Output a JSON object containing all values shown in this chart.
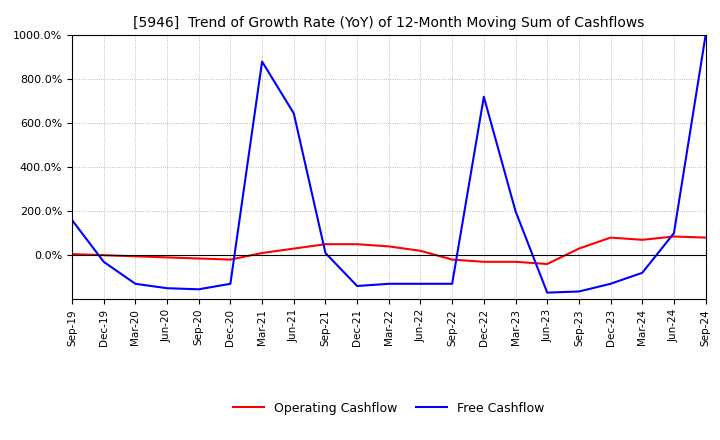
{
  "title": "[5946]  Trend of Growth Rate (YoY) of 12-Month Moving Sum of Cashflows",
  "background_color": "#ffffff",
  "grid_color": "#aaaaaa",
  "operating_color": "#ff0000",
  "free_color": "#0000ff",
  "ylim": [
    -200,
    1000
  ],
  "yticks": [
    0,
    200,
    400,
    600,
    800,
    1000
  ],
  "ytick_labels": [
    "0.0%",
    "200.0%",
    "400.0%",
    "600.0%",
    "800.0%",
    "1000.0%"
  ],
  "x_labels": [
    "Sep-19",
    "Dec-19",
    "Mar-20",
    "Jun-20",
    "Sep-20",
    "Dec-20",
    "Mar-21",
    "Jun-21",
    "Sep-21",
    "Dec-21",
    "Mar-22",
    "Jun-22",
    "Sep-22",
    "Dec-22",
    "Mar-23",
    "Jun-23",
    "Sep-23",
    "Dec-23",
    "Mar-24",
    "Jun-24",
    "Sep-24"
  ],
  "operating_cashflow": [
    5,
    0,
    -5,
    -10,
    -15,
    -20,
    10,
    30,
    50,
    50,
    40,
    20,
    -20,
    -30,
    -30,
    -40,
    30,
    80,
    70,
    85,
    80
  ],
  "free_cashflow": [
    160,
    -30,
    -130,
    -150,
    -155,
    -130,
    880,
    645,
    10,
    -140,
    -130,
    -130,
    -130,
    720,
    200,
    -170,
    -165,
    -130,
    -80,
    100,
    1000
  ]
}
